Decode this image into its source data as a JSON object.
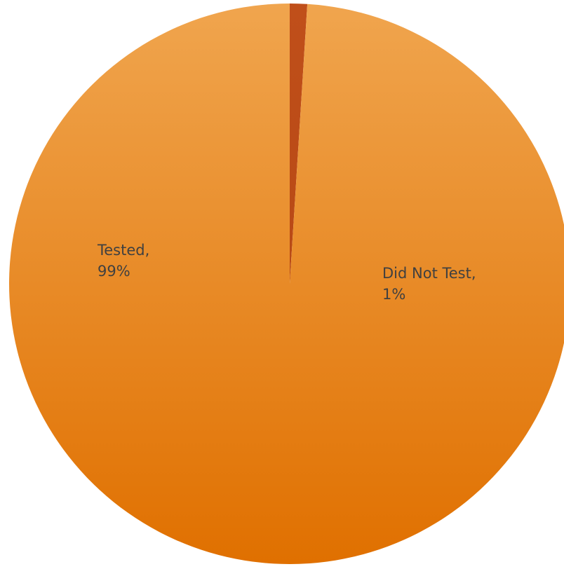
{
  "chart_data": {
    "type": "pie",
    "title": "",
    "start_angle_deg": 0,
    "direction": "clockwise",
    "slices": [
      {
        "category": "Did Not Test",
        "value": 1,
        "label_line1": "Did Not Test,",
        "label_line2": "1%",
        "color_top": "#c04f1a",
        "color_bottom": "#b0430f"
      },
      {
        "category": "Tested",
        "value": 99,
        "label_line1": "Tested,",
        "label_line2": "99%",
        "color_top": "#f0a54e",
        "color_bottom": "#e07000"
      }
    ],
    "legend": "none"
  }
}
